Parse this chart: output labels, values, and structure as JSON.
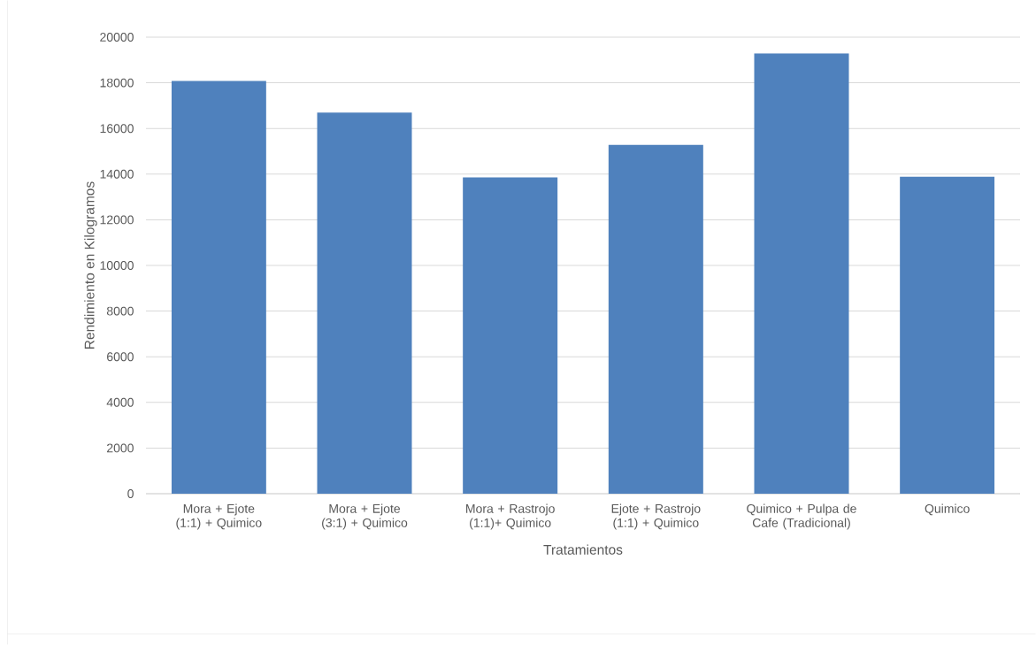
{
  "chart_data": {
    "type": "bar",
    "xlabel": "Tratamientos",
    "ylabel": "Rendimiento en Kilogramos",
    "categories": [
      "Mora + Ejote (1:1) + Quimico",
      "Mora + Ejote (3:1) + Quimico",
      "Mora + Rastrojo (1:1)+ Quimico",
      "Ejote + Rastrojo (1:1) + Quimico",
      "Quimico + Pulpa de Cafe (Tradicional)",
      "Quimico"
    ],
    "values": [
      18080,
      16700,
      13860,
      15280,
      19290,
      13890
    ],
    "color": "#4f81bd",
    "ylim": [
      0,
      20000
    ],
    "yticks": [
      0,
      2000,
      4000,
      6000,
      8000,
      10000,
      12000,
      14000,
      16000,
      18000,
      20000
    ],
    "grid": "y"
  }
}
